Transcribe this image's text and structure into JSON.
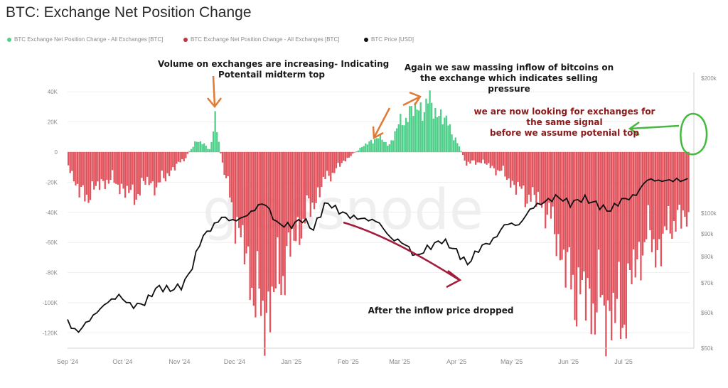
{
  "title": "BTC: Exchange Net Position Change",
  "watermark": "glassnode",
  "legend": [
    {
      "label": "BTC Exchange Net Position Change - All Exchanges [BTC]",
      "color": "#4fcf8a"
    },
    {
      "label": "BTC Exchange Net Position Change - All Exchanges [BTC]",
      "color": "#c0343c"
    },
    {
      "label": "BTC Price [USD]",
      "color": "#111111"
    }
  ],
  "annotations": {
    "a1": [
      "Volume on exchanges are increasing- Indicating",
      "Potentail midterm top"
    ],
    "a2": [
      "Again we saw massing inflow of bitcoins on",
      "the exchange which indicates selling",
      "pressure"
    ],
    "a3": [
      "we are now looking for exchanges for",
      "the same signal",
      "before we assume potenial top"
    ],
    "a4": [
      "After the inflow price dropped"
    ]
  },
  "chart_data": {
    "type": "bar",
    "title": "BTC: Exchange Net Position Change",
    "x_tick_labels": [
      "Sep '24",
      "Oct '24",
      "Nov '24",
      "Dec '24",
      "Jan '25",
      "Feb '25",
      "Mar '25",
      "Apr '25",
      "May '25",
      "Jun '25",
      "Jul '25"
    ],
    "y_left_tick_labels": [
      "40K",
      "20K",
      "0",
      "-20K",
      "-40K",
      "-60K",
      "-80K",
      "-100K",
      "-120K"
    ],
    "y_right_tick_labels": [
      "$200k",
      "$100k",
      "$90k",
      "$80k",
      "$70k",
      "$60k",
      "$50k"
    ],
    "y_left_range": [
      -130000,
      45000
    ],
    "y_right_scale": "log",
    "y_right_range": [
      50000,
      200000
    ],
    "colors": {
      "positive": "#4fcf8a",
      "negative": "#e0525c",
      "price": "#111111"
    },
    "net_position_keypoints": [
      [
        "2024-09-01",
        -8000
      ],
      [
        "2024-09-08",
        -30000
      ],
      [
        "2024-09-15",
        -25000
      ],
      [
        "2024-09-22",
        -18000
      ],
      [
        "2024-09-29",
        -22000
      ],
      [
        "2024-10-06",
        -30000
      ],
      [
        "2024-10-13",
        -20000
      ],
      [
        "2024-10-20",
        -22000
      ],
      [
        "2024-10-27",
        -12000
      ],
      [
        "2024-11-03",
        -5000
      ],
      [
        "2024-11-10",
        8000
      ],
      [
        "2024-11-17",
        2000
      ],
      [
        "2024-11-20",
        21000
      ],
      [
        "2024-11-24",
        -8000
      ],
      [
        "2024-12-01",
        -45000
      ],
      [
        "2024-12-08",
        -75000
      ],
      [
        "2024-12-15",
        -110000
      ],
      [
        "2024-12-22",
        -95000
      ],
      [
        "2024-12-29",
        -70000
      ],
      [
        "2025-01-05",
        -50000
      ],
      [
        "2025-01-12",
        -35000
      ],
      [
        "2025-01-19",
        -18000
      ],
      [
        "2025-01-26",
        -10000
      ],
      [
        "2025-02-02",
        -2000
      ],
      [
        "2025-02-09",
        4000
      ],
      [
        "2025-02-16",
        10000
      ],
      [
        "2025-02-23",
        5000
      ],
      [
        "2025-03-02",
        22000
      ],
      [
        "2025-03-09",
        28000
      ],
      [
        "2025-03-16",
        32000
      ],
      [
        "2025-03-23",
        25000
      ],
      [
        "2025-03-30",
        12000
      ],
      [
        "2025-04-06",
        -8000
      ],
      [
        "2025-04-13",
        -6000
      ],
      [
        "2025-04-20",
        -10000
      ],
      [
        "2025-04-27",
        -15000
      ],
      [
        "2025-05-04",
        -25000
      ],
      [
        "2025-05-11",
        -30000
      ],
      [
        "2025-05-18",
        -35000
      ],
      [
        "2025-05-25",
        -55000
      ],
      [
        "2025-06-01",
        -85000
      ],
      [
        "2025-06-08",
        -95000
      ],
      [
        "2025-06-15",
        -100000
      ],
      [
        "2025-06-22",
        -105000
      ],
      [
        "2025-06-29",
        -110000
      ],
      [
        "2025-07-06",
        -80000
      ],
      [
        "2025-07-13",
        -55000
      ],
      [
        "2025-07-20",
        -65000
      ],
      [
        "2025-07-27",
        -45000
      ]
    ],
    "price_keypoints": [
      [
        "2024-09-01",
        57500
      ],
      [
        "2024-09-06",
        54000
      ],
      [
        "2024-09-15",
        59000
      ],
      [
        "2024-09-22",
        63000
      ],
      [
        "2024-09-29",
        65500
      ],
      [
        "2024-10-06",
        62000
      ],
      [
        "2024-10-13",
        63000
      ],
      [
        "2024-10-20",
        68500
      ],
      [
        "2024-10-27",
        67500
      ],
      [
        "2024-11-03",
        69000
      ],
      [
        "2024-11-08",
        76000
      ],
      [
        "2024-11-13",
        88000
      ],
      [
        "2024-11-20",
        94000
      ],
      [
        "2024-11-24",
        98000
      ],
      [
        "2024-12-01",
        96000
      ],
      [
        "2024-12-08",
        99000
      ],
      [
        "2024-12-17",
        106000
      ],
      [
        "2024-12-24",
        95000
      ],
      [
        "2024-12-31",
        93500
      ],
      [
        "2025-01-07",
        97000
      ],
      [
        "2025-01-13",
        92000
      ],
      [
        "2025-01-20",
        106000
      ],
      [
        "2025-01-27",
        101000
      ],
      [
        "2025-02-03",
        98000
      ],
      [
        "2025-02-10",
        97000
      ],
      [
        "2025-02-17",
        96000
      ],
      [
        "2025-02-24",
        88000
      ],
      [
        "2025-03-03",
        86000
      ],
      [
        "2025-03-10",
        80000
      ],
      [
        "2025-03-17",
        84000
      ],
      [
        "2025-03-24",
        87000
      ],
      [
        "2025-03-31",
        83000
      ],
      [
        "2025-04-07",
        77000
      ],
      [
        "2025-04-14",
        84000
      ],
      [
        "2025-04-21",
        87000
      ],
      [
        "2025-04-28",
        95000
      ],
      [
        "2025-05-05",
        94000
      ],
      [
        "2025-05-12",
        103000
      ],
      [
        "2025-05-19",
        106000
      ],
      [
        "2025-05-26",
        109000
      ],
      [
        "2025-06-02",
        105000
      ],
      [
        "2025-06-09",
        108000
      ],
      [
        "2025-06-16",
        105000
      ],
      [
        "2025-06-23",
        101000
      ],
      [
        "2025-06-30",
        107000
      ],
      [
        "2025-07-07",
        109000
      ],
      [
        "2025-07-14",
        119000
      ],
      [
        "2025-07-21",
        118000
      ],
      [
        "2025-07-28",
        118500
      ]
    ]
  }
}
